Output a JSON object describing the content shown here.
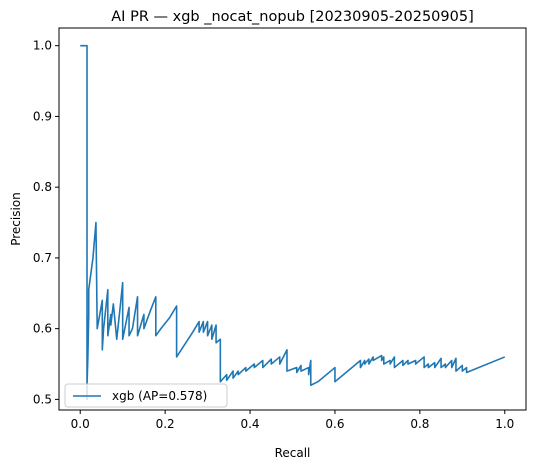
{
  "chart_data": {
    "type": "line",
    "title": "AI PR — xgb _nocat_nopub [20230905-20250905]",
    "xlabel": "Recall",
    "ylabel": "Precision",
    "xlim": [
      -0.05,
      1.05
    ],
    "ylim": [
      0.485,
      1.025
    ],
    "xticks": [
      0.0,
      0.2,
      0.4,
      0.6,
      0.8,
      1.0
    ],
    "xtick_labels": [
      "0.0",
      "0.2",
      "0.4",
      "0.6",
      "0.8",
      "1.0"
    ],
    "yticks": [
      0.5,
      0.6,
      0.7,
      0.8,
      0.9,
      1.0
    ],
    "ytick_labels": [
      "0.5",
      "0.6",
      "0.7",
      "0.8",
      "0.9",
      "1.0"
    ],
    "grid": false,
    "legend_position": "lower-left",
    "series": [
      {
        "name": "xgb (AP=0.578)",
        "color": "#1f77b4",
        "x": [
          0.0,
          0.016,
          0.016,
          0.016,
          0.018,
          0.02,
          0.02,
          0.03,
          0.037,
          0.04,
          0.04,
          0.052,
          0.052,
          0.055,
          0.065,
          0.065,
          0.072,
          0.072,
          0.078,
          0.086,
          0.086,
          0.094,
          0.1,
          0.1,
          0.115,
          0.115,
          0.123,
          0.135,
          0.135,
          0.15,
          0.15,
          0.165,
          0.178,
          0.178,
          0.19,
          0.19,
          0.21,
          0.227,
          0.227,
          0.265,
          0.28,
          0.28,
          0.29,
          0.29,
          0.3,
          0.3,
          0.31,
          0.31,
          0.32,
          0.32,
          0.33,
          0.33,
          0.345,
          0.345,
          0.36,
          0.36,
          0.372,
          0.372,
          0.39,
          0.39,
          0.41,
          0.41,
          0.43,
          0.43,
          0.45,
          0.45,
          0.47,
          0.47,
          0.487,
          0.487,
          0.51,
          0.51,
          0.52,
          0.52,
          0.538,
          0.538,
          0.543,
          0.543,
          0.56,
          0.56,
          0.6,
          0.6,
          0.66,
          0.66,
          0.67,
          0.67,
          0.68,
          0.68,
          0.69,
          0.69,
          0.71,
          0.71,
          0.715,
          0.715,
          0.73,
          0.73,
          0.74,
          0.74,
          0.76,
          0.76,
          0.772,
          0.772,
          0.79,
          0.79,
          0.81,
          0.81,
          0.82,
          0.82,
          0.835,
          0.835,
          0.85,
          0.85,
          0.86,
          0.86,
          0.875,
          0.875,
          0.885,
          0.885,
          0.9,
          0.9,
          0.91,
          0.91,
          1.0
        ],
        "y": [
          1.0,
          1.0,
          0.5,
          0.52,
          0.56,
          0.62,
          0.655,
          0.7,
          0.75,
          0.6,
          0.6,
          0.64,
          0.57,
          0.6,
          0.655,
          0.59,
          0.62,
          0.605,
          0.635,
          0.585,
          0.585,
          0.63,
          0.665,
          0.585,
          0.63,
          0.59,
          0.6,
          0.645,
          0.59,
          0.62,
          0.6,
          0.625,
          0.645,
          0.59,
          0.6,
          0.6,
          0.615,
          0.632,
          0.56,
          0.595,
          0.61,
          0.595,
          0.61,
          0.595,
          0.61,
          0.59,
          0.605,
          0.585,
          0.605,
          0.58,
          0.585,
          0.525,
          0.535,
          0.527,
          0.54,
          0.53,
          0.54,
          0.535,
          0.545,
          0.54,
          0.55,
          0.545,
          0.555,
          0.545,
          0.557,
          0.55,
          0.56,
          0.55,
          0.57,
          0.54,
          0.545,
          0.538,
          0.548,
          0.54,
          0.545,
          0.535,
          0.555,
          0.52,
          0.525,
          0.525,
          0.545,
          0.525,
          0.555,
          0.545,
          0.555,
          0.55,
          0.557,
          0.55,
          0.56,
          0.555,
          0.562,
          0.555,
          0.56,
          0.55,
          0.555,
          0.55,
          0.56,
          0.545,
          0.555,
          0.548,
          0.555,
          0.55,
          0.555,
          0.55,
          0.56,
          0.545,
          0.55,
          0.545,
          0.552,
          0.545,
          0.558,
          0.545,
          0.55,
          0.545,
          0.555,
          0.545,
          0.558,
          0.54,
          0.548,
          0.54,
          0.545,
          0.538,
          0.56
        ]
      }
    ]
  }
}
